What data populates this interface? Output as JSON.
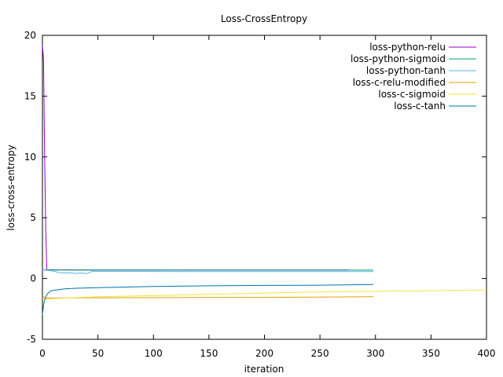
{
  "chart_data": {
    "type": "line",
    "title": "Loss-CrossEntropy",
    "xlabel": "iteration",
    "ylabel": "loss-cross-entropy",
    "xlim": [
      0,
      400
    ],
    "ylim": [
      -5,
      20
    ],
    "xticks": [
      0,
      50,
      100,
      150,
      200,
      250,
      300,
      350,
      400
    ],
    "yticks": [
      -5,
      0,
      5,
      10,
      15,
      20
    ],
    "grid": false,
    "legend_position": "top-right",
    "series": [
      {
        "name": "loss-python-relu",
        "color": "#9400d3",
        "x": [
          0,
          1,
          2,
          3,
          4,
          10,
          50,
          100,
          150,
          200,
          250,
          276
        ],
        "y": [
          19.2,
          18.0,
          10.0,
          4.0,
          0.72,
          0.72,
          0.7,
          0.7,
          0.7,
          0.7,
          0.7,
          0.7
        ]
      },
      {
        "name": "loss-python-sigmoid",
        "color": "#009e73",
        "x": [
          0,
          10,
          50,
          100,
          150,
          200,
          250,
          298
        ],
        "y": [
          0.72,
          0.7,
          0.69,
          0.69,
          0.69,
          0.69,
          0.69,
          0.69
        ]
      },
      {
        "name": "loss-python-tanh",
        "color": "#56b4e9",
        "x": [
          0,
          5,
          10,
          15,
          20,
          25,
          30,
          35,
          40,
          45,
          50,
          100,
          150,
          200,
          250,
          298
        ],
        "y": [
          0.72,
          0.68,
          0.6,
          0.5,
          0.45,
          0.48,
          0.42,
          0.45,
          0.4,
          0.6,
          0.58,
          0.58,
          0.57,
          0.57,
          0.57,
          0.57
        ]
      },
      {
        "name": "loss-c-relu-modified",
        "color": "#e69f00",
        "x": [
          0,
          2,
          10,
          50,
          100,
          150,
          200,
          250,
          298
        ],
        "y": [
          -1.4,
          -1.6,
          -1.6,
          -1.58,
          -1.57,
          -1.56,
          -1.55,
          -1.53,
          -1.5
        ]
      },
      {
        "name": "loss-c-sigmoid",
        "color": "#f0e442",
        "x": [
          0,
          2,
          10,
          50,
          100,
          150,
          200,
          250,
          300,
          350,
          400
        ],
        "y": [
          -1.6,
          -1.7,
          -1.65,
          -1.5,
          -1.4,
          -1.3,
          -1.2,
          -1.1,
          -1.05,
          -1.0,
          -0.95
        ]
      },
      {
        "name": "loss-c-tanh",
        "color": "#0072b2",
        "x": [
          0,
          1,
          2,
          3,
          5,
          8,
          12,
          20,
          30,
          50,
          100,
          150,
          200,
          250,
          298
        ],
        "y": [
          -3.0,
          -2.2,
          -1.8,
          -1.5,
          -1.2,
          -1.0,
          -0.95,
          -0.85,
          -0.8,
          -0.75,
          -0.65,
          -0.6,
          -0.57,
          -0.55,
          -0.5
        ]
      }
    ]
  }
}
